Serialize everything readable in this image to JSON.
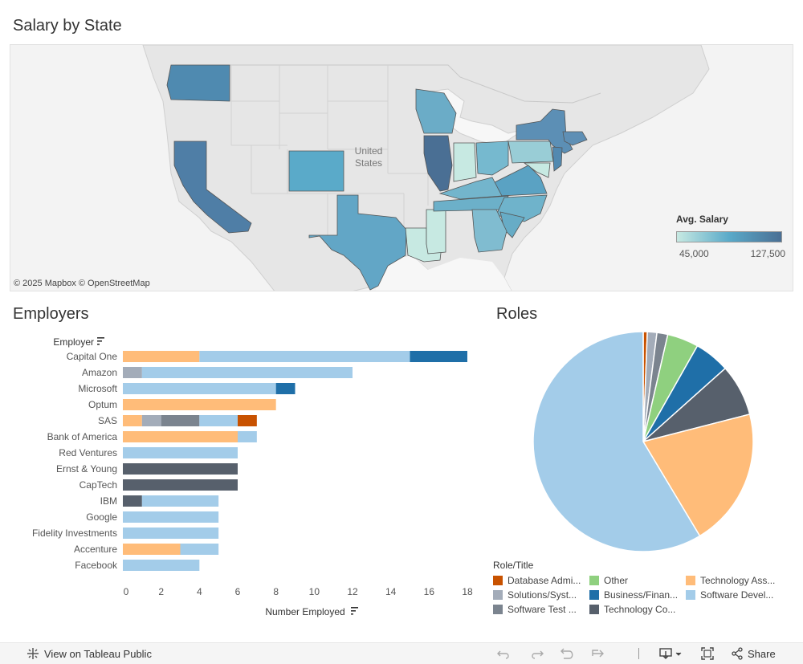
{
  "map": {
    "title": "Salary by State",
    "country_label": "United States",
    "attribution": "© 2025 Mapbox  © OpenStreetMap",
    "legend_title": "Avg. Salary",
    "legend_min": "45,000",
    "legend_max": "127,500",
    "colors": {
      "low": "#c7e9e2",
      "mid": "#5aaac9",
      "high": "#4a6f94"
    }
  },
  "employers": {
    "title": "Employers",
    "y_header": "Employer",
    "x_label": "Number Employed"
  },
  "roles": {
    "title": "Roles",
    "legend_title": "Role/Title",
    "legend": [
      {
        "label": "Database Admi...",
        "color": "#c85200"
      },
      {
        "label": "Other",
        "color": "#8fd07f"
      },
      {
        "label": "Technology Ass...",
        "color": "#ffbc79"
      },
      {
        "label": "Solutions/Syst...",
        "color": "#a3acb9"
      },
      {
        "label": "Business/Finan...",
        "color": "#1f6fa8"
      },
      {
        "label": "Software Devel...",
        "color": "#a3cce9"
      },
      {
        "label": "Software Test ...",
        "color": "#7b848f"
      },
      {
        "label": "Technology Co...",
        "color": "#57606c"
      }
    ]
  },
  "footer": {
    "view_public": "View on Tableau Public",
    "share": "Share"
  },
  "chart_data": [
    {
      "type": "bar",
      "orientation": "horizontal",
      "stacked": true,
      "ylabel": "Employer",
      "xlabel": "Number Employed",
      "xlim": [
        0,
        18
      ],
      "x_ticks": [
        "0",
        "2",
        "4",
        "6",
        "8",
        "10",
        "12",
        "14",
        "16",
        "18"
      ],
      "categories": [
        "Capital One",
        "Amazon",
        "Microsoft",
        "Optum",
        "SAS",
        "Bank of America",
        "Red Ventures",
        "Ernst & Young",
        "CapTech",
        "IBM",
        "Google",
        "Fidelity Investments",
        "Accenture",
        "Facebook"
      ],
      "series": [
        {
          "name": "Technology Ass...",
          "color": "#ffbc79",
          "values": [
            4,
            0,
            0,
            8,
            1,
            6,
            0,
            0,
            0,
            0,
            0,
            0,
            3,
            0
          ]
        },
        {
          "name": "Solutions/Syst...",
          "color": "#a3acb9",
          "values": [
            0,
            1,
            0,
            0,
            1,
            0,
            0,
            0,
            0,
            0,
            0,
            0,
            0,
            0
          ]
        },
        {
          "name": "Software Test ...",
          "color": "#7b848f",
          "values": [
            0,
            0,
            0,
            0,
            2,
            0,
            0,
            0,
            0,
            0,
            0,
            0,
            0,
            0
          ]
        },
        {
          "name": "Technology Co...",
          "color": "#57606c",
          "values": [
            0,
            0,
            0,
            0,
            0,
            0,
            0,
            6,
            6,
            1,
            0,
            0,
            0,
            0
          ]
        },
        {
          "name": "Software Devel...",
          "color": "#a3cce9",
          "values": [
            11,
            11,
            8,
            0,
            2,
            1,
            6,
            0,
            0,
            4,
            5,
            5,
            2,
            4
          ]
        },
        {
          "name": "Business/Finan...",
          "color": "#1f6fa8",
          "values": [
            3,
            0,
            1,
            0,
            0,
            0,
            0,
            0,
            0,
            0,
            0,
            0,
            0,
            0
          ]
        },
        {
          "name": "Database Admi...",
          "color": "#c85200",
          "values": [
            0,
            0,
            0,
            0,
            1,
            0,
            0,
            0,
            0,
            0,
            0,
            0,
            0,
            0
          ]
        }
      ]
    },
    {
      "type": "pie",
      "slices": [
        {
          "name": "Database Admi...",
          "color": "#c85200",
          "value": 0.6
        },
        {
          "name": "Solutions/Syst...",
          "color": "#a3acb9",
          "value": 1.4
        },
        {
          "name": "Software Test ...",
          "color": "#7b848f",
          "value": 1.6
        },
        {
          "name": "Other",
          "color": "#8fd07f",
          "value": 4.6
        },
        {
          "name": "Business/Finan...",
          "color": "#1f6fa8",
          "value": 5.2
        },
        {
          "name": "Technology Co...",
          "color": "#57606c",
          "value": 7.6
        },
        {
          "name": "Technology Ass...",
          "color": "#ffbc79",
          "value": 20.4
        },
        {
          "name": "Software Devel...",
          "color": "#a3cce9",
          "value": 58.6
        }
      ]
    }
  ]
}
